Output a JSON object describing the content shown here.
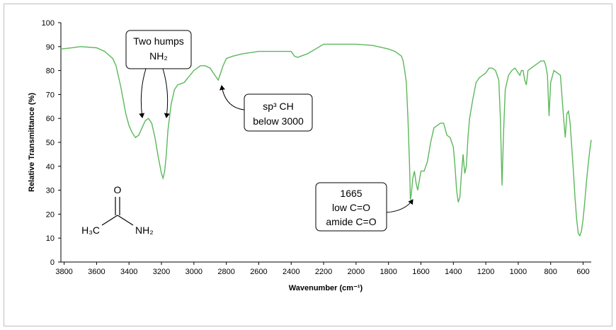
{
  "chart_data": {
    "type": "line",
    "title": "",
    "xlabel": "Wavenumber (cm⁻¹)",
    "ylabel": "Relative Transmittance (%)",
    "xlim": [
      3820,
      550
    ],
    "x_reversed": true,
    "ylim": [
      0,
      100
    ],
    "xticks": [
      3800,
      3600,
      3400,
      3200,
      3000,
      2800,
      2600,
      2400,
      2200,
      2000,
      1800,
      1600,
      1400,
      1200,
      1000,
      800,
      600
    ],
    "yticks": [
      0,
      10,
      20,
      30,
      40,
      50,
      60,
      70,
      80,
      90,
      100
    ],
    "grid": false,
    "line_color": "#5cb85c",
    "series": [
      {
        "x": [
          3820,
          3750,
          3700,
          3600,
          3550,
          3500,
          3480,
          3450,
          3420,
          3400,
          3380,
          3360,
          3340,
          3320,
          3300,
          3280,
          3260,
          3240,
          3220,
          3200,
          3190,
          3180,
          3170,
          3160,
          3140,
          3120,
          3100,
          3060,
          3000,
          2960,
          2930,
          2900,
          2880,
          2860,
          2850,
          2840,
          2820,
          2800,
          2760,
          2700,
          2600,
          2500,
          2400,
          2380,
          2360,
          2340,
          2300,
          2200,
          2100,
          2000,
          1900,
          1800,
          1760,
          1740,
          1720,
          1710,
          1700,
          1690,
          1680,
          1670,
          1665,
          1660,
          1650,
          1640,
          1630,
          1620,
          1600,
          1580,
          1560,
          1540,
          1520,
          1500,
          1480,
          1460,
          1440,
          1420,
          1400,
          1390,
          1380,
          1370,
          1360,
          1350,
          1340,
          1330,
          1320,
          1310,
          1300,
          1280,
          1260,
          1240,
          1220,
          1200,
          1180,
          1160,
          1140,
          1120,
          1110,
          1100,
          1090,
          1080,
          1060,
          1040,
          1020,
          1000,
          990,
          980,
          970,
          960,
          950,
          940,
          920,
          900,
          880,
          860,
          840,
          830,
          820,
          810,
          800,
          780,
          760,
          740,
          720,
          710,
          700,
          690,
          680,
          670,
          660,
          650,
          640,
          630,
          620,
          610,
          600,
          590,
          580,
          570,
          560,
          550
        ],
        "y": [
          89,
          89.5,
          90,
          89.5,
          88,
          85,
          82,
          73,
          62,
          57,
          54,
          52,
          53,
          56,
          59,
          60,
          58,
          52,
          44,
          37,
          35,
          38,
          45,
          55,
          66,
          72,
          74,
          75,
          80,
          82,
          82,
          81,
          79,
          77,
          76,
          78,
          82,
          85,
          86,
          87,
          88,
          88,
          88,
          86,
          85.5,
          86,
          87,
          91,
          91,
          91,
          90.5,
          89,
          88,
          87,
          86,
          84,
          80,
          75,
          60,
          40,
          26,
          28,
          35,
          38,
          33,
          30,
          38,
          38,
          42,
          50,
          56,
          57,
          58,
          58,
          53,
          52,
          48,
          40,
          30,
          25,
          27,
          37,
          45,
          37,
          40,
          52,
          60,
          68,
          75,
          77,
          78,
          79,
          81,
          81,
          80,
          76,
          60,
          32,
          55,
          72,
          78,
          80,
          81,
          79,
          78,
          80,
          80,
          76,
          74,
          80,
          81,
          82,
          83,
          84,
          84,
          82,
          78,
          61,
          75,
          80,
          79,
          78,
          60,
          52,
          62,
          63,
          58,
          48,
          38,
          27,
          18,
          12,
          11,
          13,
          18,
          25,
          33,
          40,
          46,
          51
        ]
      }
    ],
    "annotations": [
      {
        "id": "nh2",
        "text_lines": [
          "Two humps",
          "NH₂"
        ],
        "points_to": [
          [
            3340,
            60
          ],
          [
            3200,
            60
          ]
        ]
      },
      {
        "id": "sp3ch",
        "text_lines": [
          "sp³ CH",
          "below 3000"
        ],
        "points_to": [
          [
            2860,
            76
          ]
        ]
      },
      {
        "id": "carbonyl",
        "text_lines": [
          "1665",
          "low C=O",
          "amide C=O"
        ],
        "points_to": [
          [
            1665,
            25
          ]
        ]
      }
    ],
    "structure": {
      "atoms": {
        "oxygen": "O",
        "methyl": "H₃C",
        "amine": "NH₂"
      }
    }
  }
}
